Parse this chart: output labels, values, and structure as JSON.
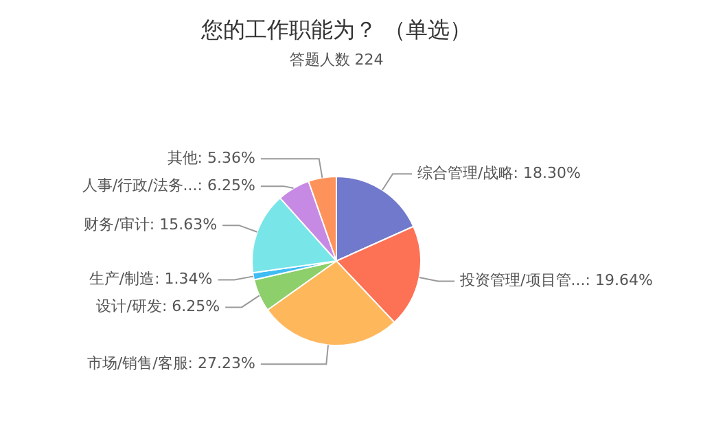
{
  "chart_data": {
    "type": "pie",
    "title": "您的工作职能为？ （单选）",
    "subtitle": "答题人数 224",
    "categories": [
      "综合管理/战略",
      "投资管理/项目管...",
      "市场/销售/客服",
      "设计/研发",
      "生产/制造",
      "财务/审计",
      "人事/行政/法务...",
      "其他"
    ],
    "values": [
      18.3,
      19.64,
      27.23,
      6.25,
      1.34,
      15.63,
      6.25,
      5.36
    ],
    "value_labels": [
      "18.30%",
      "19.64%",
      "27.23%",
      "6.25%",
      "1.34%",
      "15.63%",
      "6.25%",
      "5.36%"
    ],
    "colors": [
      "#7079cb",
      "#fd7155",
      "#ffb75c",
      "#8dcf6a",
      "#3fbdf3",
      "#78e5e8",
      "#c68ae4",
      "#fd925a"
    ],
    "legend": false
  }
}
